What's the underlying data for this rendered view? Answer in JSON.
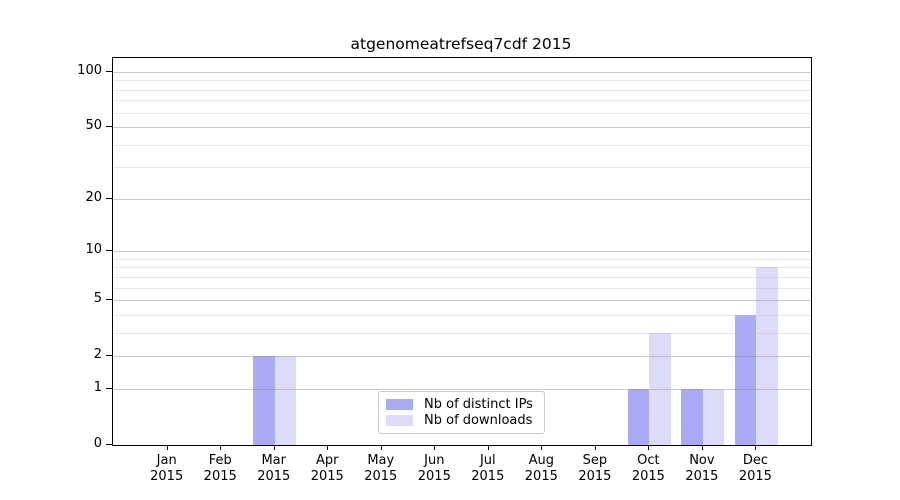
{
  "chart_data": {
    "type": "bar",
    "title": "atgenomeatrefseq7cdf 2015",
    "xlabel": "",
    "ylabel": "",
    "categories": [
      "Jan 2015",
      "Feb 2015",
      "Mar 2015",
      "Apr 2015",
      "May 2015",
      "Jun 2015",
      "Jul 2015",
      "Aug 2015",
      "Sep 2015",
      "Oct 2015",
      "Nov 2015",
      "Dec 2015"
    ],
    "series": [
      {
        "name": "Nb of distinct IPs",
        "color": "#aaaaf5",
        "values": [
          0,
          0,
          2,
          0,
          0,
          0,
          0,
          0,
          0,
          1,
          1,
          4
        ]
      },
      {
        "name": "Nb of downloads",
        "color": "#dcdcf8",
        "values": [
          0,
          0,
          2,
          0,
          0,
          0,
          0,
          0,
          0,
          3,
          1,
          8
        ]
      }
    ],
    "yscale": "log1p",
    "yticks": [
      0,
      1,
      2,
      5,
      10,
      20,
      50,
      100
    ],
    "minor_gridlines": [
      3,
      4,
      6,
      7,
      8,
      9,
      30,
      40,
      60,
      70,
      80,
      90
    ],
    "ylim": [
      0,
      119
    ],
    "grid": "on",
    "legend_position": "lower center",
    "colors": {
      "grid_major": "rgba(130,130,130,0.42)",
      "grid_minor": "rgba(190,190,190,0.38)",
      "axis": "#000000",
      "text": "#000000"
    }
  }
}
